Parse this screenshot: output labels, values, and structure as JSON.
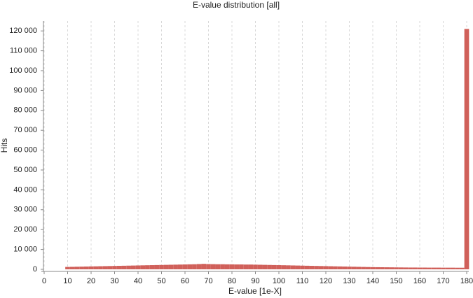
{
  "chart_data": {
    "type": "bar",
    "title": "E-value distribution [all]",
    "x_label": "E-value [1e-X]",
    "y_label": "Hits",
    "color": "#d0605a",
    "grid": true,
    "x": [
      10,
      12,
      14,
      16,
      18,
      20,
      22,
      24,
      26,
      28,
      30,
      32,
      34,
      36,
      38,
      40,
      42,
      44,
      46,
      48,
      50,
      52,
      54,
      56,
      58,
      60,
      62,
      64,
      66,
      68,
      70,
      72,
      74,
      76,
      78,
      80,
      82,
      84,
      86,
      88,
      90,
      92,
      94,
      96,
      98,
      100,
      102,
      104,
      106,
      108,
      110,
      112,
      114,
      116,
      118,
      120,
      122,
      124,
      126,
      128,
      130,
      132,
      134,
      136,
      138,
      140,
      142,
      144,
      146,
      148,
      150,
      152,
      154,
      156,
      158,
      160,
      162,
      164,
      166,
      168,
      170,
      172,
      174,
      176,
      178,
      180
    ],
    "values": [
      1200,
      1250,
      1300,
      1350,
      1400,
      1450,
      1500,
      1550,
      1600,
      1650,
      1700,
      1750,
      1800,
      1850,
      1900,
      1950,
      2000,
      2050,
      2100,
      2150,
      2200,
      2250,
      2300,
      2350,
      2400,
      2450,
      2500,
      2550,
      2650,
      2750,
      2650,
      2600,
      2550,
      2550,
      2500,
      2500,
      2450,
      2450,
      2400,
      2400,
      2350,
      2300,
      2250,
      2200,
      2150,
      2100,
      2050,
      2000,
      1950,
      1900,
      1850,
      1800,
      1750,
      1700,
      1650,
      1600,
      1550,
      1500,
      1450,
      1400,
      1350,
      1300,
      1250,
      1200,
      1150,
      1100,
      1075,
      1050,
      1025,
      1000,
      975,
      950,
      925,
      900,
      900,
      875,
      875,
      850,
      850,
      850,
      825,
      825,
      825,
      800,
      800,
      121000
    ],
    "xlim": [
      0,
      180
    ],
    "xticks": [
      0,
      10,
      20,
      30,
      40,
      50,
      60,
      70,
      80,
      90,
      100,
      110,
      120,
      130,
      140,
      150,
      160,
      170,
      180
    ],
    "ylim": [
      0,
      125000
    ],
    "yticks": [
      0,
      {
        "value": 10000,
        "label": "10 000"
      },
      {
        "value": 20000,
        "label": "20 000"
      },
      {
        "value": 30000,
        "label": "30 000"
      },
      {
        "value": 40000,
        "label": "40 000"
      },
      {
        "value": 50000,
        "label": "50 000"
      },
      {
        "value": 60000,
        "label": "60 000"
      },
      {
        "value": 70000,
        "label": "70 000"
      },
      {
        "value": 80000,
        "label": "80 000"
      },
      {
        "value": 90000,
        "label": "90 000"
      },
      {
        "value": 100000,
        "label": "100 000"
      },
      {
        "value": 110000,
        "label": "110 000"
      },
      {
        "value": 120000,
        "label": "120 000"
      }
    ]
  }
}
